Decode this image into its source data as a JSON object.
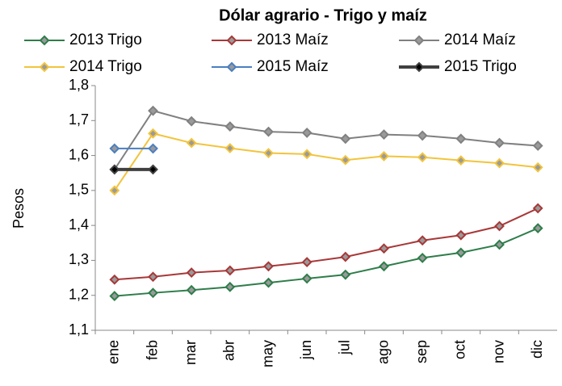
{
  "chart_data": {
    "type": "line",
    "title": "Dólar agrario  - Trigo y maíz",
    "y_label": "Pesos",
    "categories": [
      "ene",
      "feb",
      "mar",
      "abr",
      "may",
      "jun",
      "jul",
      "ago",
      "sep",
      "oct",
      "nov",
      "dic"
    ],
    "ylim": [
      1.1,
      1.8
    ],
    "yticks": [
      {
        "value": 1.1,
        "label": "1,1"
      },
      {
        "value": 1.2,
        "label": "1,2"
      },
      {
        "value": 1.3,
        "label": "1,3"
      },
      {
        "value": 1.4,
        "label": "1,4"
      },
      {
        "value": 1.5,
        "label": "1,5"
      },
      {
        "value": 1.6,
        "label": "1,6"
      },
      {
        "value": 1.7,
        "label": "1,7"
      },
      {
        "value": 1.8,
        "label": "1,8"
      }
    ],
    "series": [
      {
        "name": "2013 Trigo",
        "color": "#2e7d4a",
        "values": [
          1.198,
          1.207,
          1.215,
          1.224,
          1.236,
          1.248,
          1.259,
          1.283,
          1.307,
          1.322,
          1.345,
          1.392
        ]
      },
      {
        "name": "2013 Maíz",
        "color": "#a83838",
        "values": [
          1.245,
          1.253,
          1.265,
          1.271,
          1.283,
          1.295,
          1.31,
          1.334,
          1.357,
          1.372,
          1.398,
          1.449
        ]
      },
      {
        "name": "2014 Maíz",
        "color": "#808080",
        "values": [
          1.56,
          1.728,
          1.698,
          1.683,
          1.668,
          1.665,
          1.648,
          1.66,
          1.657,
          1.648,
          1.636,
          1.628
        ]
      },
      {
        "name": "2014 Trigo",
        "color": "#f2c43c",
        "values": [
          1.5,
          1.663,
          1.636,
          1.621,
          1.607,
          1.604,
          1.587,
          1.598,
          1.595,
          1.586,
          1.578,
          1.566
        ]
      },
      {
        "name": "2015 Maíz",
        "color": "#4a7fc1",
        "values": [
          1.62,
          1.62,
          null,
          null,
          null,
          null,
          null,
          null,
          null,
          null,
          null,
          null
        ]
      },
      {
        "name": "2015 Trigo",
        "color": "#404040",
        "values": [
          1.56,
          1.56,
          null,
          null,
          null,
          null,
          null,
          null,
          null,
          null,
          null,
          null
        ]
      }
    ]
  }
}
